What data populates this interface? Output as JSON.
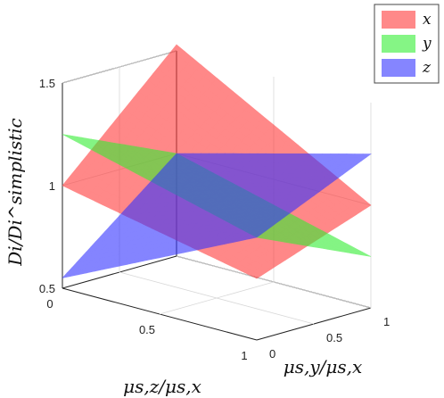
{
  "chart_data": {
    "type": "surface",
    "title": "",
    "xlabel": "μs,z/μs,x",
    "ylabel": "μs,y/μs,x",
    "zlabel": "Di/Di^simplistic",
    "x_ticks": [
      "0",
      "0.5",
      "1"
    ],
    "y_ticks": [
      "0",
      "0.5",
      "1"
    ],
    "z_ticks": [
      "0.5",
      "1",
      "1.5"
    ],
    "xlim": [
      0,
      1
    ],
    "ylim": [
      0,
      1
    ],
    "zlim": [
      0.5,
      1.5
    ],
    "grid": true,
    "legend_position": "top-right",
    "series": [
      {
        "name": "x",
        "color": "#ff3a3a",
        "corners": {
          "x0y0": 1.0,
          "x1y0": 0.8,
          "x0y1": 1.53,
          "x1y1": 1.0
        }
      },
      {
        "name": "y",
        "color": "#33ee33",
        "corners": {
          "x0y0": 1.25,
          "x1y0": 1.0,
          "x0y1": 1.0,
          "x1y1": 0.75
        }
      },
      {
        "name": "z",
        "color": "#3333ff",
        "corners": {
          "x0y0": 0.55,
          "x1y0": 1.0,
          "x0y1": 1.0,
          "x1y1": 1.25
        }
      }
    ],
    "legend_labels": [
      "x",
      "y",
      "z"
    ]
  }
}
